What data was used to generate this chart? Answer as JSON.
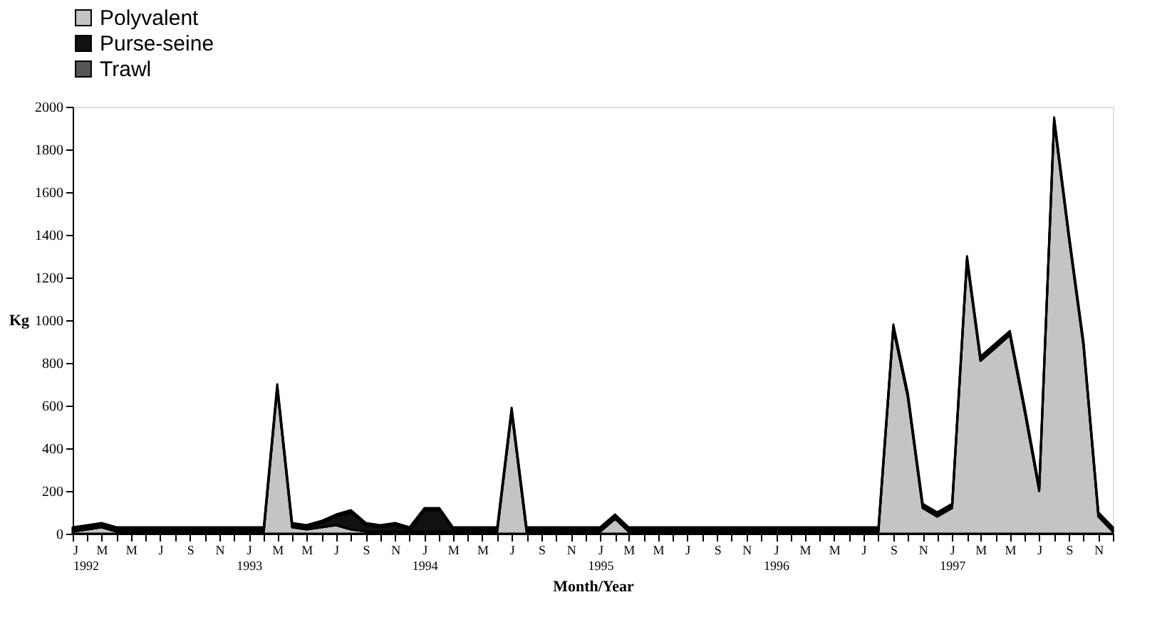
{
  "chart_data": {
    "type": "area",
    "stacked": true,
    "xlabel": "Month/Year",
    "ylabel": "Kg",
    "legend": "top",
    "grid": false,
    "x": [
      "1992-01",
      "1992-02",
      "1992-03",
      "1992-04",
      "1992-05",
      "1992-06",
      "1992-07",
      "1992-08",
      "1992-09",
      "1992-10",
      "1992-11",
      "1992-12",
      "1993-01",
      "1993-02",
      "1993-03",
      "1993-04",
      "1993-05",
      "1993-06",
      "1993-07",
      "1993-08",
      "1993-09",
      "1993-10",
      "1993-11",
      "1993-12",
      "1994-01",
      "1994-02",
      "1994-03",
      "1994-04",
      "1994-05",
      "1994-06",
      "1994-07",
      "1994-08",
      "1994-09",
      "1994-10",
      "1994-11",
      "1994-12",
      "1995-01",
      "1995-02",
      "1995-03",
      "1995-04",
      "1995-05",
      "1995-06",
      "1995-07",
      "1995-08",
      "1995-09",
      "1995-10",
      "1995-11",
      "1995-12",
      "1996-01",
      "1996-02",
      "1996-03",
      "1996-04",
      "1996-05",
      "1996-06",
      "1996-07",
      "1996-08",
      "1996-09",
      "1996-10",
      "1996-11",
      "1996-12",
      "1997-01",
      "1997-02",
      "1997-03",
      "1997-04",
      "1997-05",
      "1997-06",
      "1997-07",
      "1997-08",
      "1997-09",
      "1997-10",
      "1997-11",
      "1997-12"
    ],
    "xlim": [
      "1992-01",
      "1997-12"
    ],
    "xticks": [
      {
        "value": "1992-01",
        "label": "J\n1992"
      },
      {
        "value": "1992-02",
        "label": null
      },
      {
        "value": "1992-03",
        "label": "M"
      },
      {
        "value": "1992-04",
        "label": null
      },
      {
        "value": "1992-05",
        "label": "M"
      },
      {
        "value": "1992-06",
        "label": null
      },
      {
        "value": "1992-07",
        "label": "J"
      },
      {
        "value": "1992-08",
        "label": null
      },
      {
        "value": "1992-09",
        "label": "S"
      },
      {
        "value": "1992-10",
        "label": null
      },
      {
        "value": "1992-11",
        "label": "N"
      },
      {
        "value": "1992-12",
        "label": null
      },
      {
        "value": "1993-01",
        "label": "J\n1993"
      },
      {
        "value": "1993-02",
        "label": null
      },
      {
        "value": "1993-03",
        "label": "M"
      },
      {
        "value": "1993-04",
        "label": null
      },
      {
        "value": "1993-05",
        "label": "M"
      },
      {
        "value": "1993-06",
        "label": null
      },
      {
        "value": "1993-07",
        "label": "J"
      },
      {
        "value": "1993-08",
        "label": null
      },
      {
        "value": "1993-09",
        "label": "S"
      },
      {
        "value": "1993-10",
        "label": null
      },
      {
        "value": "1993-11",
        "label": "N"
      },
      {
        "value": "1993-12",
        "label": null
      },
      {
        "value": "1994-01",
        "label": "J\n1994"
      },
      {
        "value": "1994-02",
        "label": null
      },
      {
        "value": "1994-03",
        "label": "M"
      },
      {
        "value": "1994-04",
        "label": null
      },
      {
        "value": "1994-05",
        "label": "M"
      },
      {
        "value": "1994-06",
        "label": null
      },
      {
        "value": "1994-07",
        "label": "J"
      },
      {
        "value": "1994-08",
        "label": null
      },
      {
        "value": "1994-09",
        "label": "S"
      },
      {
        "value": "1994-10",
        "label": null
      },
      {
        "value": "1994-11",
        "label": "N"
      },
      {
        "value": "1994-12",
        "label": null
      },
      {
        "value": "1995-01",
        "label": "J\n1995"
      },
      {
        "value": "1995-02",
        "label": null
      },
      {
        "value": "1995-03",
        "label": "M"
      },
      {
        "value": "1995-04",
        "label": null
      },
      {
        "value": "1995-05",
        "label": "M"
      },
      {
        "value": "1995-06",
        "label": null
      },
      {
        "value": "1995-07",
        "label": "J"
      },
      {
        "value": "1995-08",
        "label": null
      },
      {
        "value": "1995-09",
        "label": "S"
      },
      {
        "value": "1995-10",
        "label": null
      },
      {
        "value": "1995-11",
        "label": "N"
      },
      {
        "value": "1995-12",
        "label": null
      },
      {
        "value": "1996-01",
        "label": "J\n1996"
      },
      {
        "value": "1996-02",
        "label": null
      },
      {
        "value": "1996-03",
        "label": "M"
      },
      {
        "value": "1996-04",
        "label": null
      },
      {
        "value": "1996-05",
        "label": "M"
      },
      {
        "value": "1996-06",
        "label": null
      },
      {
        "value": "1996-07",
        "label": "J"
      },
      {
        "value": "1996-08",
        "label": null
      },
      {
        "value": "1996-09",
        "label": "S"
      },
      {
        "value": "1996-10",
        "label": null
      },
      {
        "value": "1996-11",
        "label": "N"
      },
      {
        "value": "1996-12",
        "label": null
      },
      {
        "value": "1997-01",
        "label": "J\n1997"
      },
      {
        "value": "1997-02",
        "label": null
      },
      {
        "value": "1997-03",
        "label": "M"
      },
      {
        "value": "1997-04",
        "label": null
      },
      {
        "value": "1997-05",
        "label": "M"
      },
      {
        "value": "1997-06",
        "label": null
      },
      {
        "value": "1997-07",
        "label": "J"
      },
      {
        "value": "1997-08",
        "label": null
      },
      {
        "value": "1997-09",
        "label": "S"
      },
      {
        "value": "1997-10",
        "label": null
      },
      {
        "value": "1997-11",
        "label": "N"
      },
      {
        "value": "1997-12",
        "label": null
      }
    ],
    "ylim": [
      0,
      2000
    ],
    "yticks": [
      0,
      200,
      400,
      600,
      800,
      1000,
      1200,
      1400,
      1600,
      1800,
      2000
    ],
    "series": [
      {
        "name": "Polyvalent",
        "color": "#c4c4c4",
        "values": [
          10,
          20,
          30,
          10,
          10,
          10,
          10,
          10,
          10,
          10,
          10,
          10,
          10,
          10,
          680,
          30,
          20,
          30,
          40,
          20,
          10,
          10,
          10,
          10,
          10,
          10,
          10,
          10,
          10,
          10,
          570,
          10,
          10,
          10,
          10,
          10,
          10,
          70,
          10,
          10,
          10,
          10,
          10,
          10,
          10,
          10,
          10,
          10,
          10,
          10,
          10,
          10,
          10,
          10,
          10,
          10,
          960,
          640,
          120,
          80,
          120,
          1280,
          810,
          870,
          930,
          570,
          200,
          1930,
          1380,
          880,
          80,
          10
        ]
      },
      {
        "name": "Purse-seine",
        "color": "#111111",
        "values": [
          10,
          10,
          10,
          10,
          10,
          10,
          10,
          10,
          10,
          10,
          10,
          10,
          10,
          10,
          10,
          10,
          10,
          20,
          40,
          80,
          30,
          20,
          30,
          10,
          100,
          100,
          10,
          10,
          10,
          10,
          10,
          10,
          10,
          10,
          10,
          10,
          10,
          10,
          10,
          10,
          10,
          10,
          10,
          10,
          10,
          10,
          10,
          10,
          10,
          10,
          10,
          10,
          10,
          10,
          10,
          10,
          10,
          10,
          10,
          10,
          10,
          10,
          10,
          10,
          10,
          10,
          10,
          10,
          10,
          10,
          10,
          10
        ]
      },
      {
        "name": "Trawl",
        "color": "#555555",
        "values": [
          10,
          10,
          10,
          10,
          10,
          10,
          10,
          10,
          10,
          10,
          10,
          10,
          10,
          10,
          10,
          10,
          10,
          10,
          10,
          10,
          10,
          10,
          10,
          10,
          10,
          10,
          10,
          10,
          10,
          10,
          10,
          10,
          10,
          10,
          10,
          10,
          10,
          10,
          10,
          10,
          10,
          10,
          10,
          10,
          10,
          10,
          10,
          10,
          10,
          10,
          10,
          10,
          10,
          10,
          10,
          10,
          10,
          10,
          10,
          10,
          10,
          10,
          10,
          10,
          10,
          10,
          10,
          10,
          10,
          10,
          10,
          10
        ]
      }
    ]
  }
}
